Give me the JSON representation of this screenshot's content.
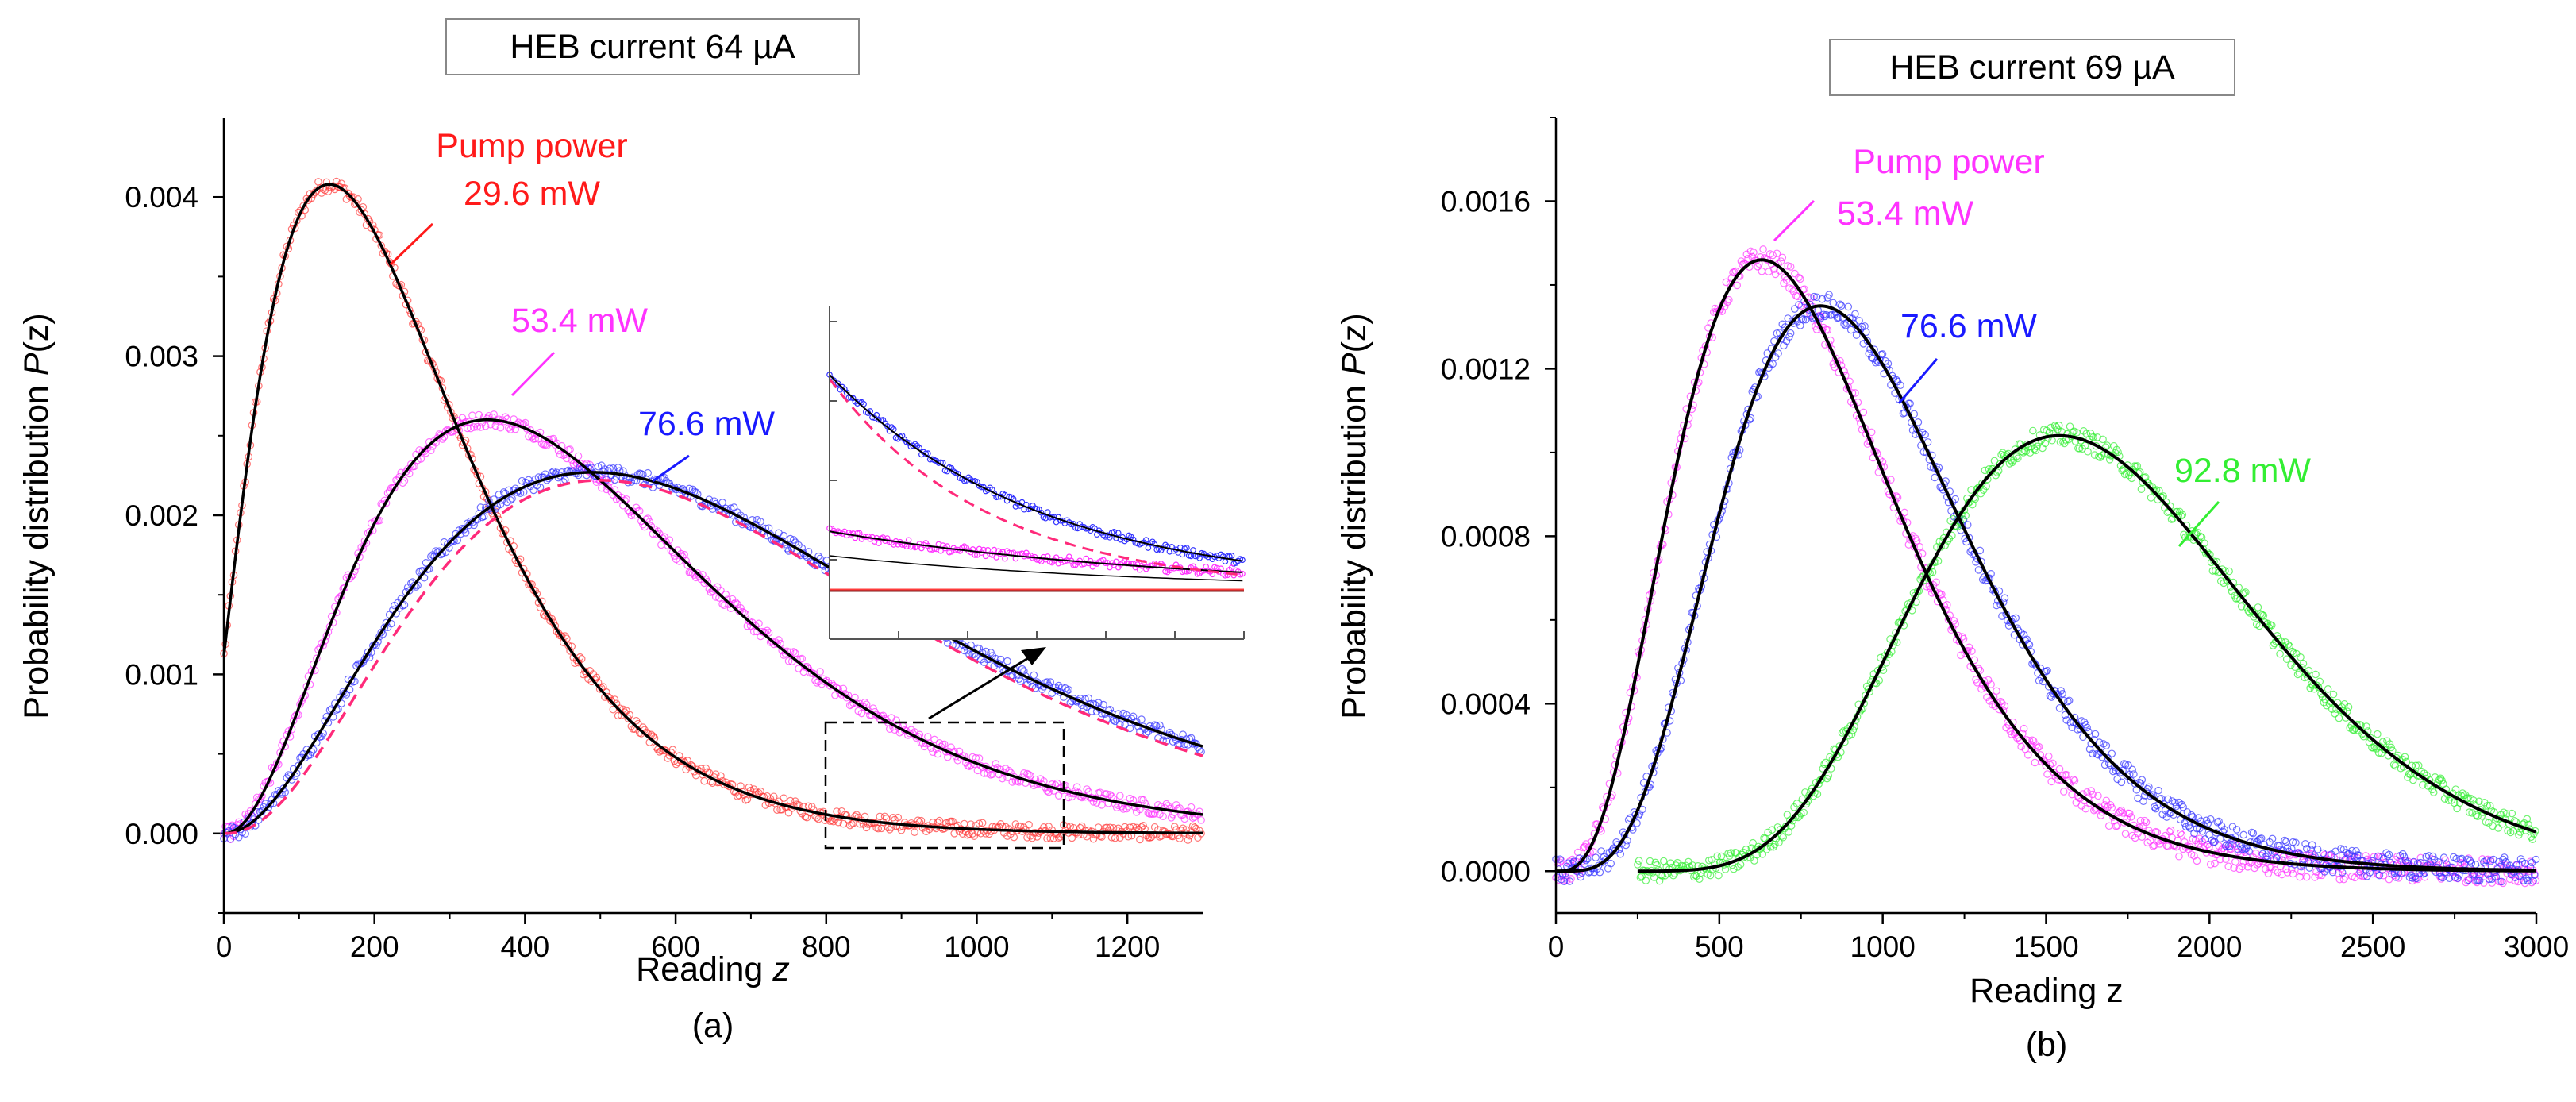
{
  "chart_data": [
    {
      "type": "scatter",
      "panel_label": "(a)",
      "title_box": "HEB current  64 µA",
      "xlabel_prefix": "Reading ",
      "xlabel_var": "z",
      "ylabel_prefix": "Probability distribution ",
      "ylabel_var": "P",
      "ylabel_suffix": "(z)",
      "xlim": [
        0,
        1300
      ],
      "ylim": [
        -0.0005,
        0.0045
      ],
      "xticks": [
        0,
        200,
        400,
        600,
        800,
        1000,
        1200
      ],
      "xtick_labels": [
        "0",
        "200",
        "400",
        "600",
        "800",
        "1000",
        "1200"
      ],
      "yticks": [
        0.0,
        0.001,
        0.002,
        0.003,
        0.004
      ],
      "ytick_labels": [
        "0.000",
        "0.001",
        "0.002",
        "0.003",
        "0.004"
      ],
      "series": [
        {
          "name": "Pump power 29.6 mW",
          "color": "#ff3b3b",
          "peak_x": 140,
          "peak_y": 0.00408,
          "start_x": 0,
          "start_y": 0.0012
        },
        {
          "name": "53.4 mW",
          "color": "#ff33ff",
          "peak_x": 350,
          "peak_y": 0.0026,
          "start_x": 0,
          "start_y": 2e-05
        },
        {
          "name": "76.6 mW",
          "color": "#3333ff",
          "peak_x": 490,
          "peak_y": 0.00227,
          "start_x": 0,
          "start_y": 0.0
        }
      ],
      "annotations": [
        {
          "line1": "Pump power",
          "line2": "29.6 mW",
          "color": "#ff1a1a"
        },
        {
          "line1": "53.4 mW",
          "line2": "",
          "color": "#ff33ff"
        },
        {
          "line1": "76.6 mW",
          "line2": "",
          "color": "#1a1aff"
        }
      ],
      "inset": {
        "x_range": [
          800,
          1110
        ],
        "y_range": [
          -3e-05,
          0.0007
        ]
      }
    },
    {
      "type": "scatter",
      "panel_label": "(b)",
      "title_box": "HEB current  69 µA",
      "xlabel_prefix": "Reading z",
      "ylabel_prefix": "Probability distribution ",
      "ylabel_var": "P",
      "ylabel_suffix": "(z)",
      "xlim": [
        0,
        3000
      ],
      "ylim": [
        -0.0001,
        0.0018
      ],
      "xticks": [
        0,
        500,
        1000,
        1500,
        2000,
        2500,
        3000
      ],
      "xtick_labels": [
        "0",
        "500",
        "1000",
        "1500",
        "2000",
        "2500",
        "3000"
      ],
      "yticks": [
        0.0,
        0.0004,
        0.0008,
        0.0012,
        0.0016
      ],
      "ytick_labels": [
        "0.0000",
        "0.0004",
        "0.0008",
        "0.0012",
        "0.0016"
      ],
      "series": [
        {
          "name": "Pump power 53.4 mW",
          "color": "#ff33ff",
          "peak_x": 630,
          "peak_y": 0.00146,
          "start_x": 0
        },
        {
          "name": "76.6 mW",
          "color": "#3333ff",
          "peak_x": 810,
          "peak_y": 0.00135,
          "start_x": 0
        },
        {
          "name": "92.8 mW",
          "color": "#33ee33",
          "peak_x": 1540,
          "peak_y": 0.00104,
          "start_x": 250
        }
      ],
      "annotations": [
        {
          "line1": "Pump power",
          "line2": "53.4 mW",
          "color": "#ff33ff"
        },
        {
          "line1": "76.6 mW",
          "line2": "",
          "color": "#1a1aff"
        },
        {
          "line1": "92.8 mW",
          "line2": "",
          "color": "#33ee33"
        }
      ]
    }
  ]
}
